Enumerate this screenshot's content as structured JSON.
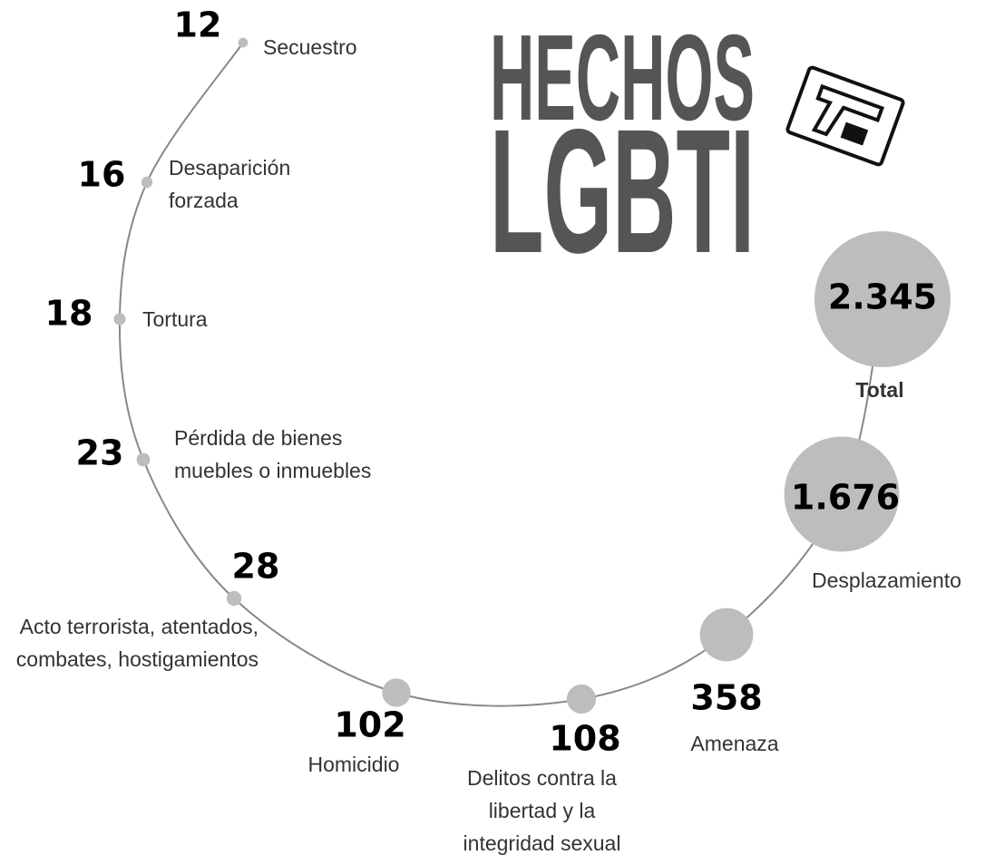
{
  "chart_data": {
    "type": "bubble",
    "title": "HECHOS",
    "subtitle": "LGBTI",
    "categories": [
      "Secuestro",
      "Desaparición forzada",
      "Tortura",
      "Pérdida de bienes muebles o inmuebles",
      "Acto terrorista, atentados, combates, hostigamientos",
      "Homicidio",
      "Delitos contra la libertad y la integridad sexual",
      "Amenaza",
      "Desplazamiento",
      "Total"
    ],
    "values": [
      12,
      16,
      18,
      23,
      28,
      102,
      108,
      358,
      1676,
      2345
    ],
    "value_labels": [
      "12",
      "16",
      "18",
      "23",
      "28",
      "102",
      "108",
      "358",
      "1.676",
      "2.345"
    ],
    "color": "#bdbdbd"
  }
}
